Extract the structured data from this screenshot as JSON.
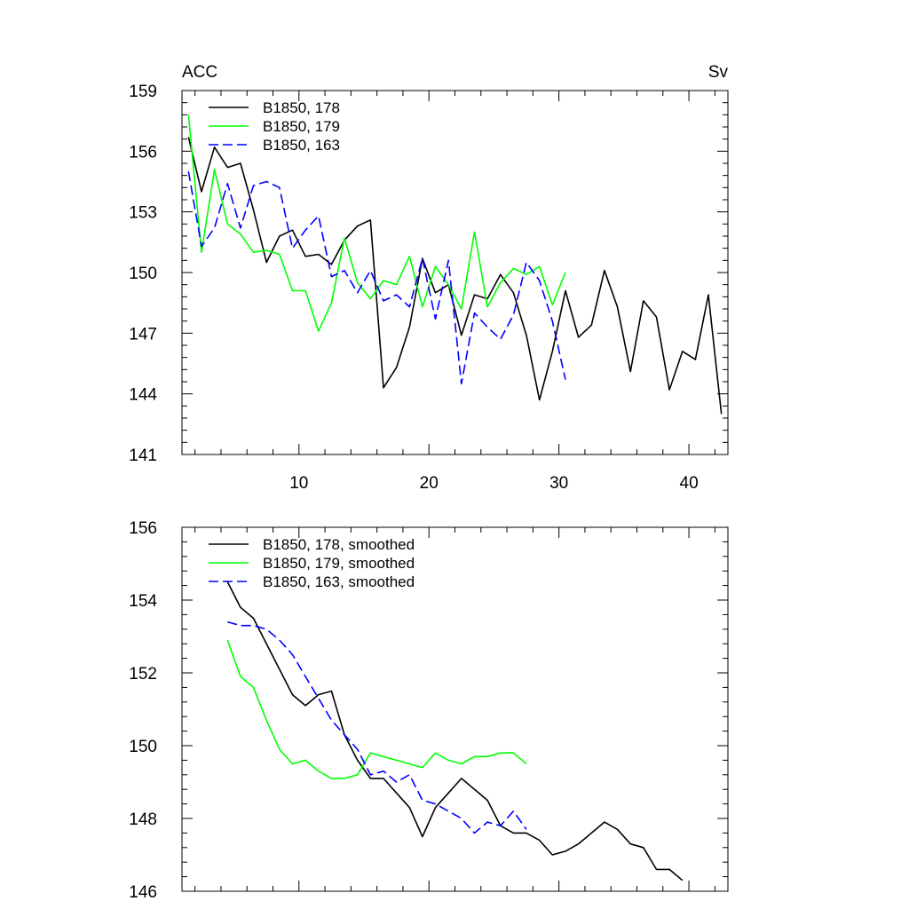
{
  "chart_data": [
    {
      "type": "line",
      "panel": "top",
      "left_label": "ACC",
      "right_label": "Sv",
      "xlim": [
        1,
        43
      ],
      "ylim": [
        141,
        159
      ],
      "xticks": [
        10,
        20,
        30,
        40
      ],
      "xtick_labels": [
        "10",
        "20",
        "30",
        "40"
      ],
      "yticks": [
        141,
        144,
        147,
        150,
        153,
        156,
        159
      ],
      "ytick_labels": [
        "141",
        "144",
        "147",
        "150",
        "153",
        "156",
        "159"
      ],
      "legend_position": "top-left",
      "series": [
        {
          "name": "B1850, 178",
          "color": "#000000",
          "dash": "solid",
          "x": [
            1.5,
            2.5,
            3.5,
            4.5,
            5.5,
            6.5,
            7.5,
            8.5,
            9.5,
            10.5,
            11.5,
            12.5,
            13.5,
            14.5,
            15.5,
            16.5,
            17.5,
            18.5,
            19.5,
            20.5,
            21.5,
            22.5,
            23.5,
            24.5,
            25.5,
            26.5,
            27.5,
            28.5,
            29.5,
            30.5,
            31.5,
            32.5,
            33.5,
            34.5,
            35.5,
            36.5,
            37.5,
            38.5,
            39.5,
            40.5,
            41.5,
            42.5
          ],
          "values": [
            156.7,
            154.0,
            156.2,
            155.2,
            155.4,
            153.1,
            150.5,
            151.8,
            152.1,
            150.8,
            150.9,
            150.4,
            151.6,
            152.3,
            152.6,
            144.3,
            145.3,
            147.3,
            150.7,
            149.0,
            149.4,
            146.9,
            148.9,
            148.7,
            149.9,
            149.0,
            146.9,
            143.7,
            146.1,
            149.1,
            146.8,
            147.4,
            150.1,
            148.3,
            145.1,
            148.6,
            147.8,
            144.2,
            146.1,
            145.7,
            148.9,
            143.0
          ]
        },
        {
          "name": "B1850, 179",
          "color": "#00ff00",
          "dash": "solid",
          "x": [
            1.5,
            2.5,
            3.5,
            4.5,
            5.5,
            6.5,
            7.5,
            8.5,
            9.5,
            10.5,
            11.5,
            12.5,
            13.5,
            14.5,
            15.5,
            16.5,
            17.5,
            18.5,
            19.5,
            20.5,
            21.5,
            22.5,
            23.5,
            24.5,
            25.5,
            26.5,
            27.5,
            28.5,
            29.5,
            30.5
          ],
          "values": [
            157.8,
            151.0,
            155.1,
            152.4,
            151.9,
            151.0,
            151.1,
            150.9,
            149.1,
            149.1,
            147.1,
            148.5,
            151.7,
            149.5,
            148.7,
            149.6,
            149.4,
            150.8,
            148.3,
            150.3,
            149.4,
            148.2,
            152.0,
            148.3,
            149.5,
            150.2,
            149.9,
            150.3,
            148.4,
            150.0
          ]
        },
        {
          "name": "B1850, 163",
          "color": "#0000ff",
          "dash": "dashed",
          "x": [
            1.5,
            2.5,
            3.5,
            4.5,
            5.5,
            6.5,
            7.5,
            8.5,
            9.5,
            10.5,
            11.5,
            12.5,
            13.5,
            14.5,
            15.5,
            16.5,
            17.5,
            18.5,
            19.5,
            20.5,
            21.5,
            22.5,
            23.5,
            24.5,
            25.5,
            26.5,
            27.5,
            28.5,
            29.5,
            30.5
          ],
          "values": [
            155.0,
            151.3,
            152.2,
            154.4,
            152.2,
            154.3,
            154.5,
            154.2,
            151.2,
            152.1,
            152.8,
            149.8,
            150.1,
            149.0,
            150.1,
            148.6,
            148.9,
            148.3,
            150.7,
            147.7,
            150.6,
            144.5,
            148.0,
            147.3,
            146.7,
            147.9,
            150.5,
            149.6,
            147.6,
            144.7
          ]
        }
      ]
    },
    {
      "type": "line",
      "panel": "bottom",
      "xlim": [
        1,
        43
      ],
      "ylim": [
        146,
        156
      ],
      "xticks": [
        10,
        20,
        30,
        40
      ],
      "yticks": [
        146,
        148,
        150,
        152,
        154,
        156
      ],
      "ytick_labels": [
        "146",
        "148",
        "150",
        "152",
        "154",
        "156"
      ],
      "legend_position": "top-left",
      "series": [
        {
          "name": "B1850, 178, smoothed",
          "color": "#000000",
          "dash": "solid",
          "x": [
            4.5,
            5.5,
            6.5,
            7.5,
            8.5,
            9.5,
            10.5,
            11.5,
            12.5,
            13.5,
            14.5,
            15.5,
            16.5,
            17.5,
            18.5,
            19.5,
            20.5,
            21.5,
            22.5,
            23.5,
            24.5,
            25.5,
            26.5,
            27.5,
            28.5,
            29.5,
            30.5,
            31.5,
            32.5,
            33.5,
            34.5,
            35.5,
            36.5,
            37.5,
            38.5,
            39.5
          ],
          "values": [
            154.5,
            153.8,
            153.5,
            152.8,
            152.1,
            151.4,
            151.1,
            151.4,
            151.5,
            150.3,
            149.6,
            149.1,
            149.1,
            148.7,
            148.3,
            147.5,
            148.3,
            148.7,
            149.1,
            148.8,
            148.5,
            147.8,
            147.6,
            147.6,
            147.4,
            147.0,
            147.1,
            147.3,
            147.6,
            147.9,
            147.7,
            147.3,
            147.2,
            146.6,
            146.6,
            146.3
          ]
        },
        {
          "name": "B1850, 179, smoothed",
          "color": "#00ff00",
          "dash": "solid",
          "x": [
            4.5,
            5.5,
            6.5,
            7.5,
            8.5,
            9.5,
            10.5,
            11.5,
            12.5,
            13.5,
            14.5,
            15.5,
            16.5,
            17.5,
            18.5,
            19.5,
            20.5,
            21.5,
            22.5,
            23.5,
            24.5,
            25.5,
            26.5,
            27.5
          ],
          "values": [
            152.9,
            151.9,
            151.6,
            150.7,
            149.9,
            149.5,
            149.6,
            149.3,
            149.1,
            149.1,
            149.2,
            149.8,
            149.7,
            149.6,
            149.5,
            149.4,
            149.8,
            149.6,
            149.5,
            149.7,
            149.7,
            149.8,
            149.8,
            149.5
          ]
        },
        {
          "name": "B1850, 163, smoothed",
          "color": "#0000ff",
          "dash": "dashed",
          "x": [
            4.5,
            5.5,
            6.5,
            7.5,
            8.5,
            9.5,
            10.5,
            11.5,
            12.5,
            13.5,
            14.5,
            15.5,
            16.5,
            17.5,
            18.5,
            19.5,
            20.5,
            21.5,
            22.5,
            23.5,
            24.5,
            25.5,
            26.5,
            27.5
          ],
          "values": [
            153.4,
            153.3,
            153.3,
            153.2,
            152.9,
            152.5,
            151.9,
            151.3,
            150.7,
            150.3,
            149.9,
            149.2,
            149.3,
            149.0,
            149.2,
            148.5,
            148.4,
            148.2,
            148.0,
            147.6,
            147.9,
            147.8,
            148.2,
            147.7
          ]
        }
      ]
    }
  ]
}
